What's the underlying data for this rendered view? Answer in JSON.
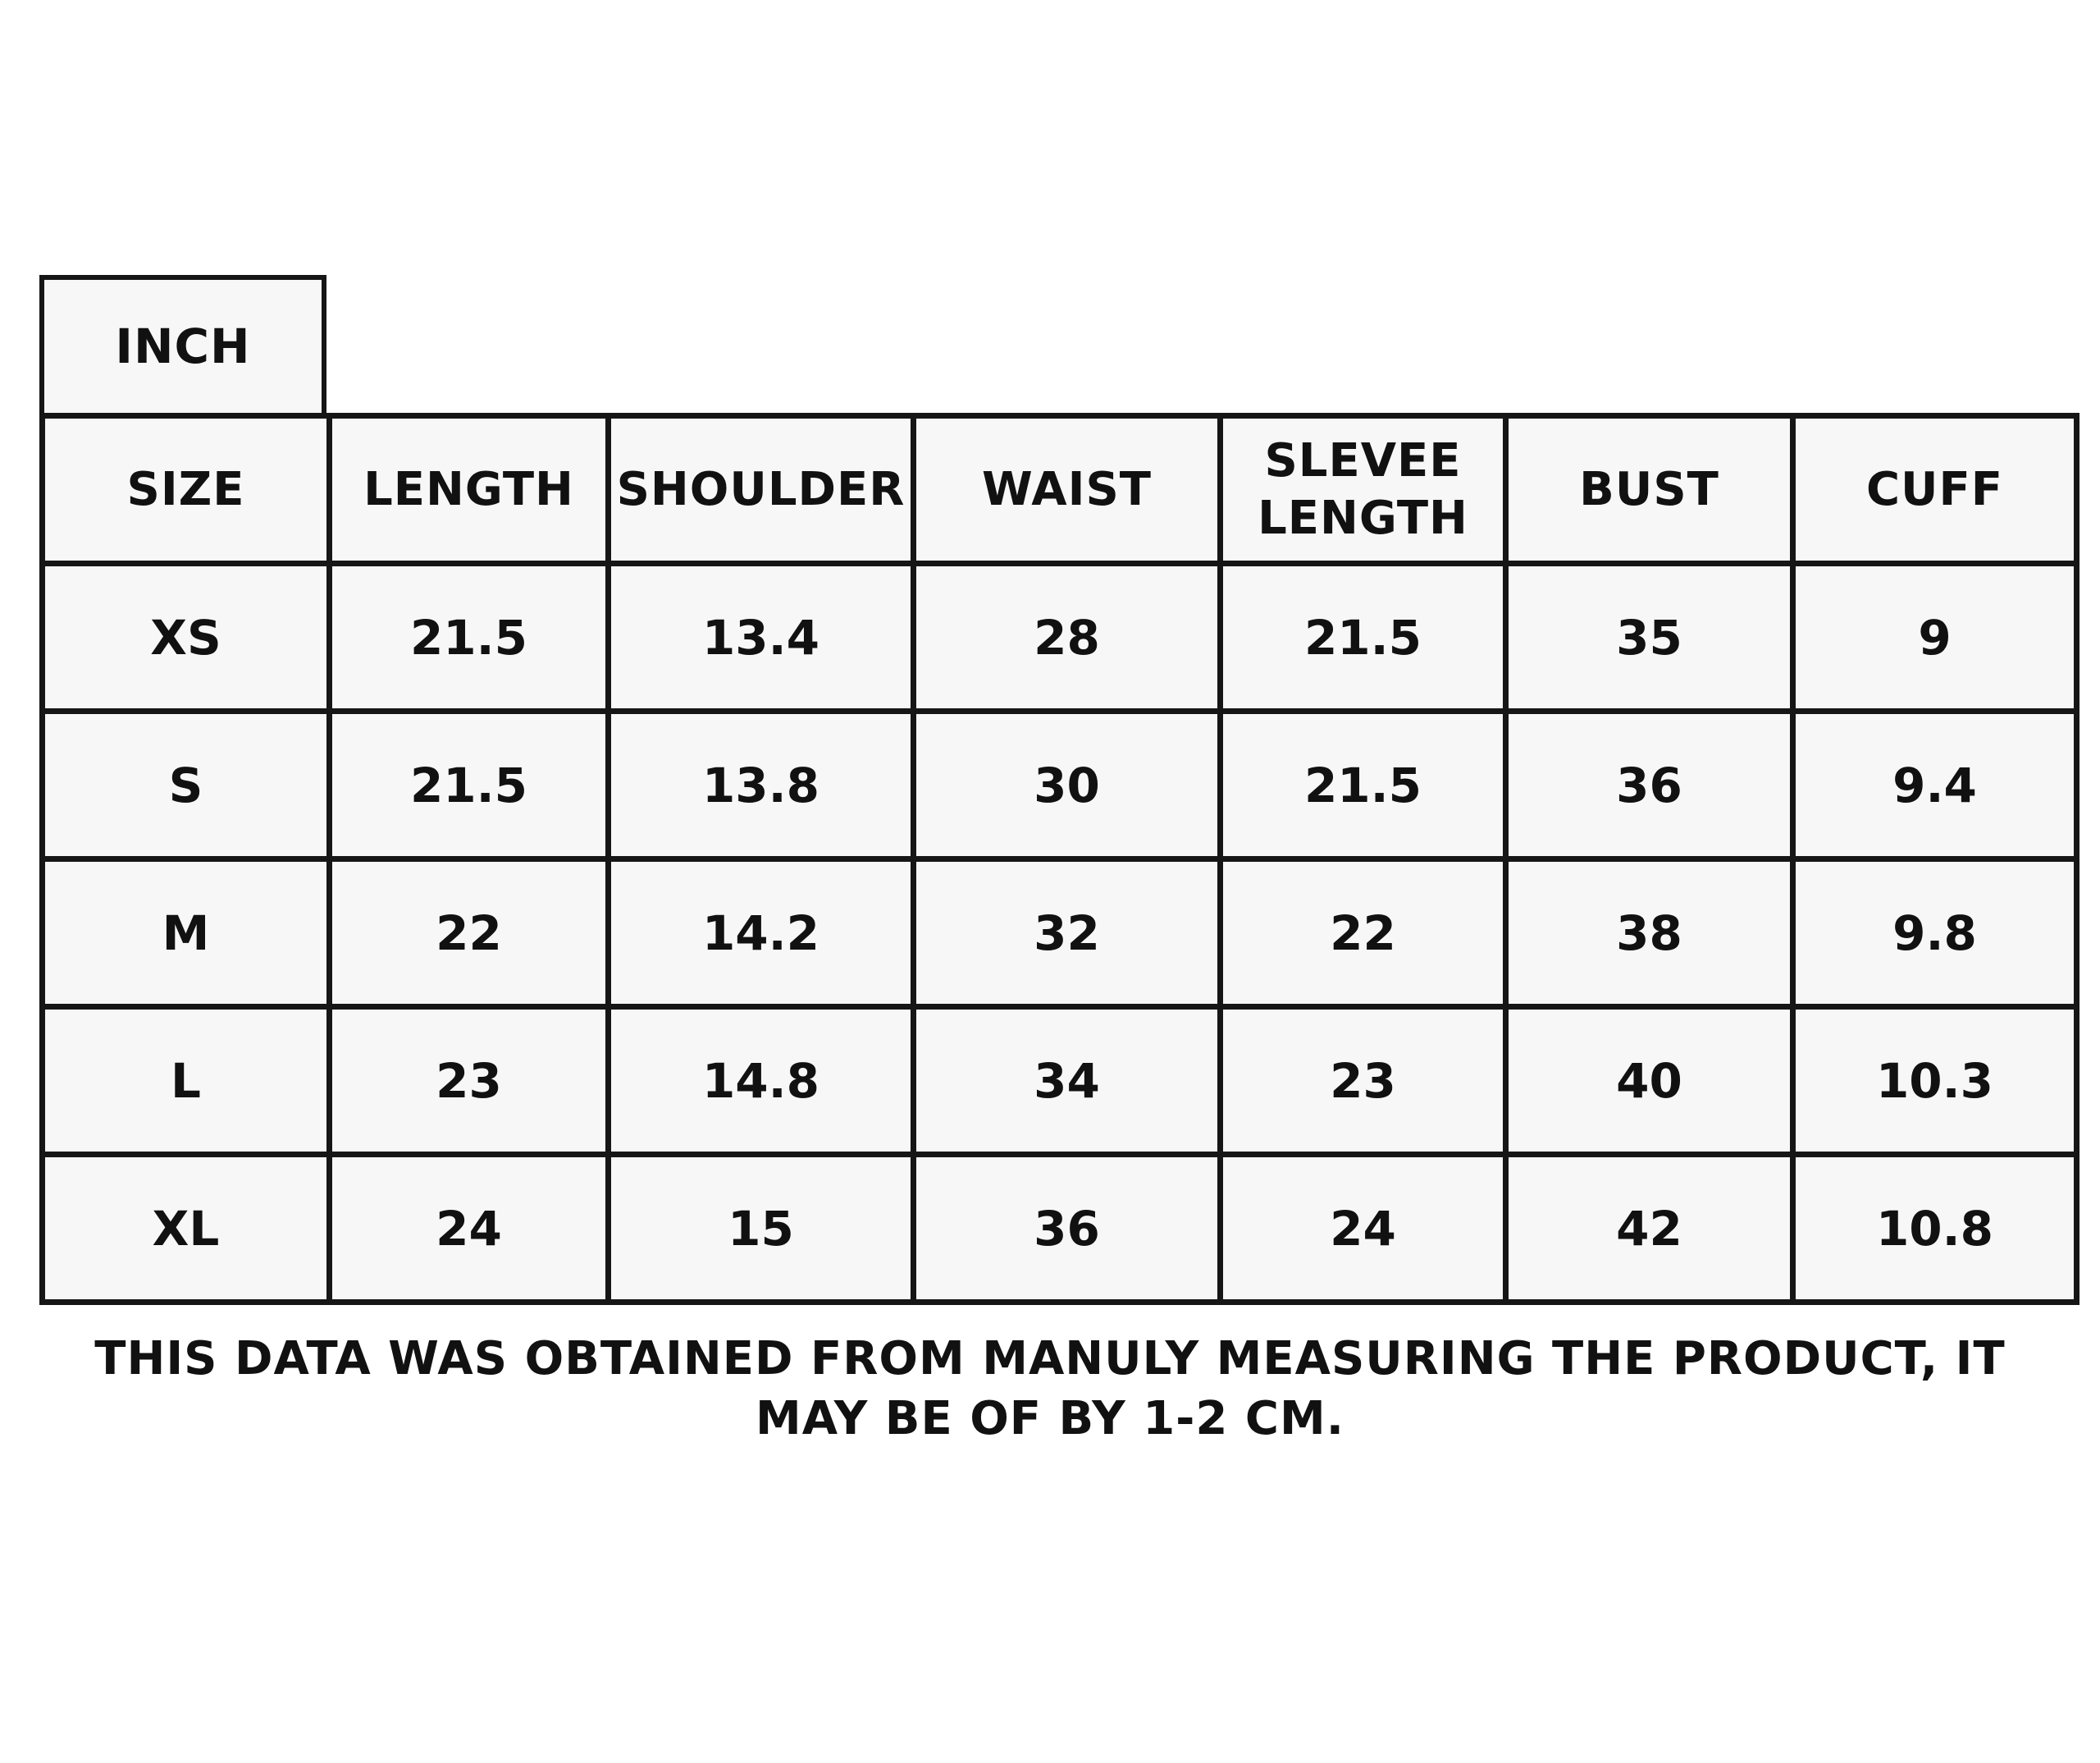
{
  "unit_label": "INCH",
  "table": {
    "headers": [
      "SIZE",
      "LENGTH",
      "SHOULDER",
      "WAIST",
      "SLEVEE LENGTH",
      "BUST",
      "CUFF"
    ],
    "rows": [
      [
        "XS",
        "21.5",
        "13.4",
        "28",
        "21.5",
        "35",
        "9"
      ],
      [
        "S",
        "21.5",
        "13.8",
        "30",
        "21.5",
        "36",
        "9.4"
      ],
      [
        "M",
        "22",
        "14.2",
        "32",
        "22",
        "38",
        "9.8"
      ],
      [
        "L",
        "23",
        "14.8",
        "34",
        "23",
        "40",
        "10.3"
      ],
      [
        "XL",
        "24",
        "15",
        "36",
        "24",
        "42",
        "10.8"
      ]
    ]
  },
  "note": "THIS DATA WAS OBTAINED FROM MANULY MEASURING THE PRODUCT, IT MAY BE OF BY 1-2 CM."
}
